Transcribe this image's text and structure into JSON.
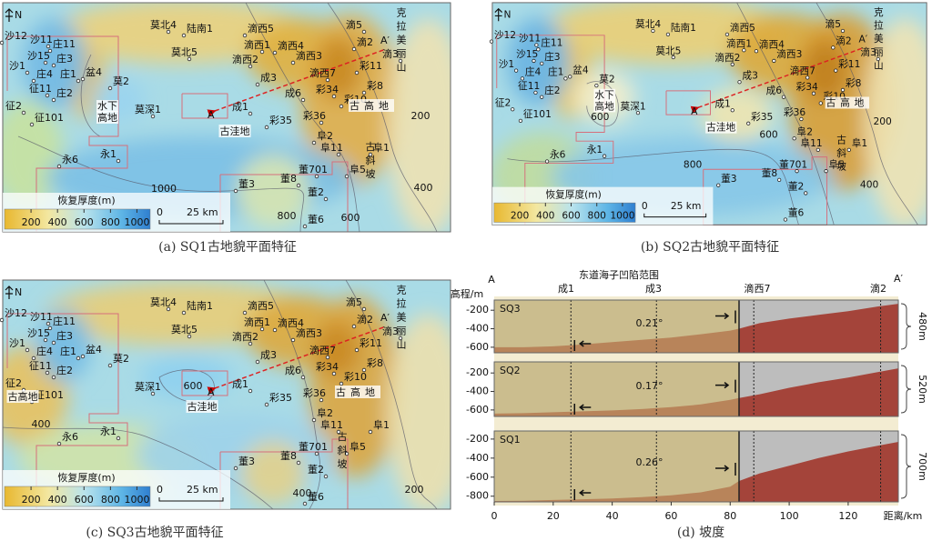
{
  "maps": {
    "well_names": [
      "沙12",
      "沙11",
      "庄11",
      "沙15",
      "庄3",
      "沙1",
      "庄4",
      "庄1",
      "盆4",
      "征11",
      "庄2",
      "征2",
      "征101",
      "莫北4",
      "陆南1",
      "莫北5",
      "莫2",
      "莫深1",
      "永6",
      "永1",
      "滴西5",
      "滴西1",
      "滴西4",
      "滴西2",
      "滴西3",
      "滴5",
      "滴2",
      "滴3",
      "彩11",
      "滴西7",
      "成3",
      "彩34",
      "彩8",
      "成6",
      "彩10",
      "成1",
      "彩35",
      "彩36",
      "阜2",
      "阜11",
      "阜1",
      "董701",
      "阜5",
      "董8",
      "董3",
      "董2",
      "董6"
    ],
    "north": "N",
    "mountain": "克拉美丽山",
    "section_ends": [
      "A",
      "A′"
    ],
    "legend_title": "恢复厚度(m)",
    "colorbar_ticks": [
      200,
      400,
      600,
      800,
      1000
    ],
    "scale": {
      "zero": "0",
      "length": "25 km"
    },
    "panels": [
      {
        "caption": "(a) SQ1古地貌平面特征",
        "labels": [
          "水下",
          "高地",
          "古洼地",
          "古高地",
          "古斜坡"
        ],
        "contours": [
          1000,
          800,
          600,
          400,
          200
        ]
      },
      {
        "caption": "(b) SQ2古地貌平面特征",
        "labels": [
          "水下",
          "高地",
          "古洼地",
          "古高地",
          "古斜坡"
        ],
        "contours": [
          600,
          600,
          800,
          400,
          200
        ]
      },
      {
        "caption": "(c) SQ3古地貌平面特征",
        "labels": [
          "古高地",
          "古洼地",
          "古高地",
          "古斜坡"
        ],
        "contours": [
          600,
          400,
          400,
          200
        ]
      }
    ]
  },
  "chart_data": {
    "type": "line",
    "caption": "(d) 坡度",
    "y_label": "高程/m",
    "x_label": "距离/km",
    "top_labels": [
      "A",
      "东道海子凹陷范围",
      "成1",
      "成3",
      "滴西7",
      "滴2",
      "A′"
    ],
    "x": [
      0,
      10,
      20,
      30,
      40,
      50,
      60,
      70,
      80,
      83,
      90,
      100,
      110,
      120,
      130,
      137
    ],
    "xlim": [
      0,
      137
    ],
    "xticks": [
      0,
      20,
      40,
      60,
      80,
      100,
      120
    ],
    "panels": [
      {
        "name": "SQ3",
        "values": [
          -600,
          -600,
          -590,
          -570,
          -545,
          -520,
          -495,
          -460,
          -420,
          -400,
          -340,
          -290,
          -250,
          -210,
          -160,
          -130
        ],
        "ylim": [
          -660,
          -90
        ],
        "yticks": [
          -200,
          -400,
          -600
        ],
        "slope": "0.21°",
        "thickness": "480m"
      },
      {
        "name": "SQ2",
        "values": [
          -640,
          -635,
          -625,
          -615,
          -605,
          -590,
          -570,
          -540,
          -490,
          -470,
          -430,
          -360,
          -300,
          -250,
          -190,
          -150
        ],
        "ylim": [
          -670,
          -80
        ],
        "yticks": [
          -200,
          -400,
          -600
        ],
        "slope": "0.17°",
        "thickness": "520m"
      },
      {
        "name": "SQ1",
        "values": [
          -850,
          -848,
          -840,
          -832,
          -825,
          -810,
          -790,
          -760,
          -700,
          -640,
          -560,
          -480,
          -400,
          -330,
          -270,
          -230
        ],
        "ylim": [
          -860,
          -115
        ],
        "yticks": [
          -200,
          -400,
          -600,
          -800
        ],
        "slope": "0.26°",
        "thickness": "700m"
      }
    ]
  }
}
